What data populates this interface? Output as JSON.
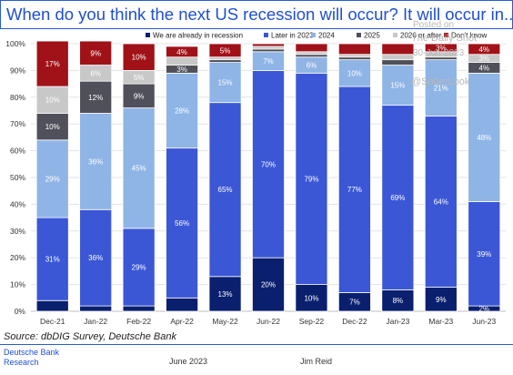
{
  "title": "When do you think the next US recession will occur? It will occur in...",
  "source": "Source: dbDIG Survey, Deutsche Bank",
  "footer": {
    "brand_line1": "Deutsche Bank",
    "brand_line2": "Research",
    "date": "June 2023",
    "author": "Jim Reid"
  },
  "watermark": {
    "line1": "Posted on",
    "line2": "The Daily Shot",
    "line3": "30-Jun-2023",
    "line4": "@SoberLook"
  },
  "colors": {
    "already": "#0a1f6e",
    "later2023": "#3b57d6",
    "y2024": "#8fb4e6",
    "y2025": "#50505a",
    "y2026": "#c8c8c8",
    "dontknow": "#a01218",
    "title": "#1f4fd4"
  },
  "chart_data": {
    "type": "bar",
    "stacked": true,
    "percent": true,
    "categories": [
      "Dec-21",
      "Jan-22",
      "Feb-22",
      "Apr-22",
      "May-22",
      "Jun-22",
      "Sep-22",
      "Dec-22",
      "Jan-23",
      "Mar-23",
      "Jun-23"
    ],
    "ylim": [
      0,
      100
    ],
    "yticks": [
      "0%",
      "10%",
      "20%",
      "30%",
      "40%",
      "50%",
      "60%",
      "70%",
      "80%",
      "90%",
      "100%"
    ],
    "legend_position": "top",
    "series": [
      {
        "name": "We are already in recession",
        "color_key": "already",
        "values": [
          4,
          2,
          2,
          5,
          13,
          20,
          10,
          7,
          8,
          9,
          2
        ],
        "labels": [
          "",
          "",
          "",
          "",
          "13%",
          "20%",
          "10%",
          "7%",
          "8%",
          "9%",
          "2%"
        ]
      },
      {
        "name": "Later in 2023",
        "color_key": "later2023",
        "values": [
          31,
          36,
          29,
          56,
          65,
          70,
          79,
          77,
          69,
          64,
          39
        ],
        "labels": [
          "31%",
          "36%",
          "29%",
          "56%",
          "65%",
          "70%",
          "79%",
          "77%",
          "69%",
          "64%",
          "39%"
        ]
      },
      {
        "name": "2024",
        "color_key": "y2024",
        "values": [
          29,
          36,
          45,
          28,
          15,
          7,
          6,
          10,
          15,
          21,
          48
        ],
        "labels": [
          "29%",
          "36%",
          "45%",
          "28%",
          "15%",
          "7%",
          "6%",
          "10%",
          "15%",
          "21%",
          "48%"
        ]
      },
      {
        "name": "2025",
        "color_key": "y2025",
        "values": [
          10,
          12,
          9,
          3,
          1,
          1,
          1,
          1,
          2,
          1,
          4
        ],
        "labels": [
          "10%",
          "12%",
          "9%",
          "3%",
          "",
          "",
          "",
          "",
          "",
          "",
          "4%"
        ]
      },
      {
        "name": "2026 or after",
        "color_key": "y2026",
        "values": [
          10,
          6,
          5,
          3,
          1,
          1,
          1,
          1,
          2,
          2,
          3
        ],
        "labels": [
          "10%",
          "6%",
          "5%",
          "",
          "",
          "",
          "",
          "",
          "",
          "",
          "3%"
        ]
      },
      {
        "name": "Don't know",
        "color_key": "dontknow",
        "values": [
          17,
          9,
          10,
          4,
          5,
          1,
          3,
          4,
          4,
          3,
          4
        ],
        "labels": [
          "17%",
          "9%",
          "10%",
          "4%",
          "5%",
          "",
          "",
          "",
          "",
          "3%",
          "4%"
        ]
      }
    ]
  }
}
